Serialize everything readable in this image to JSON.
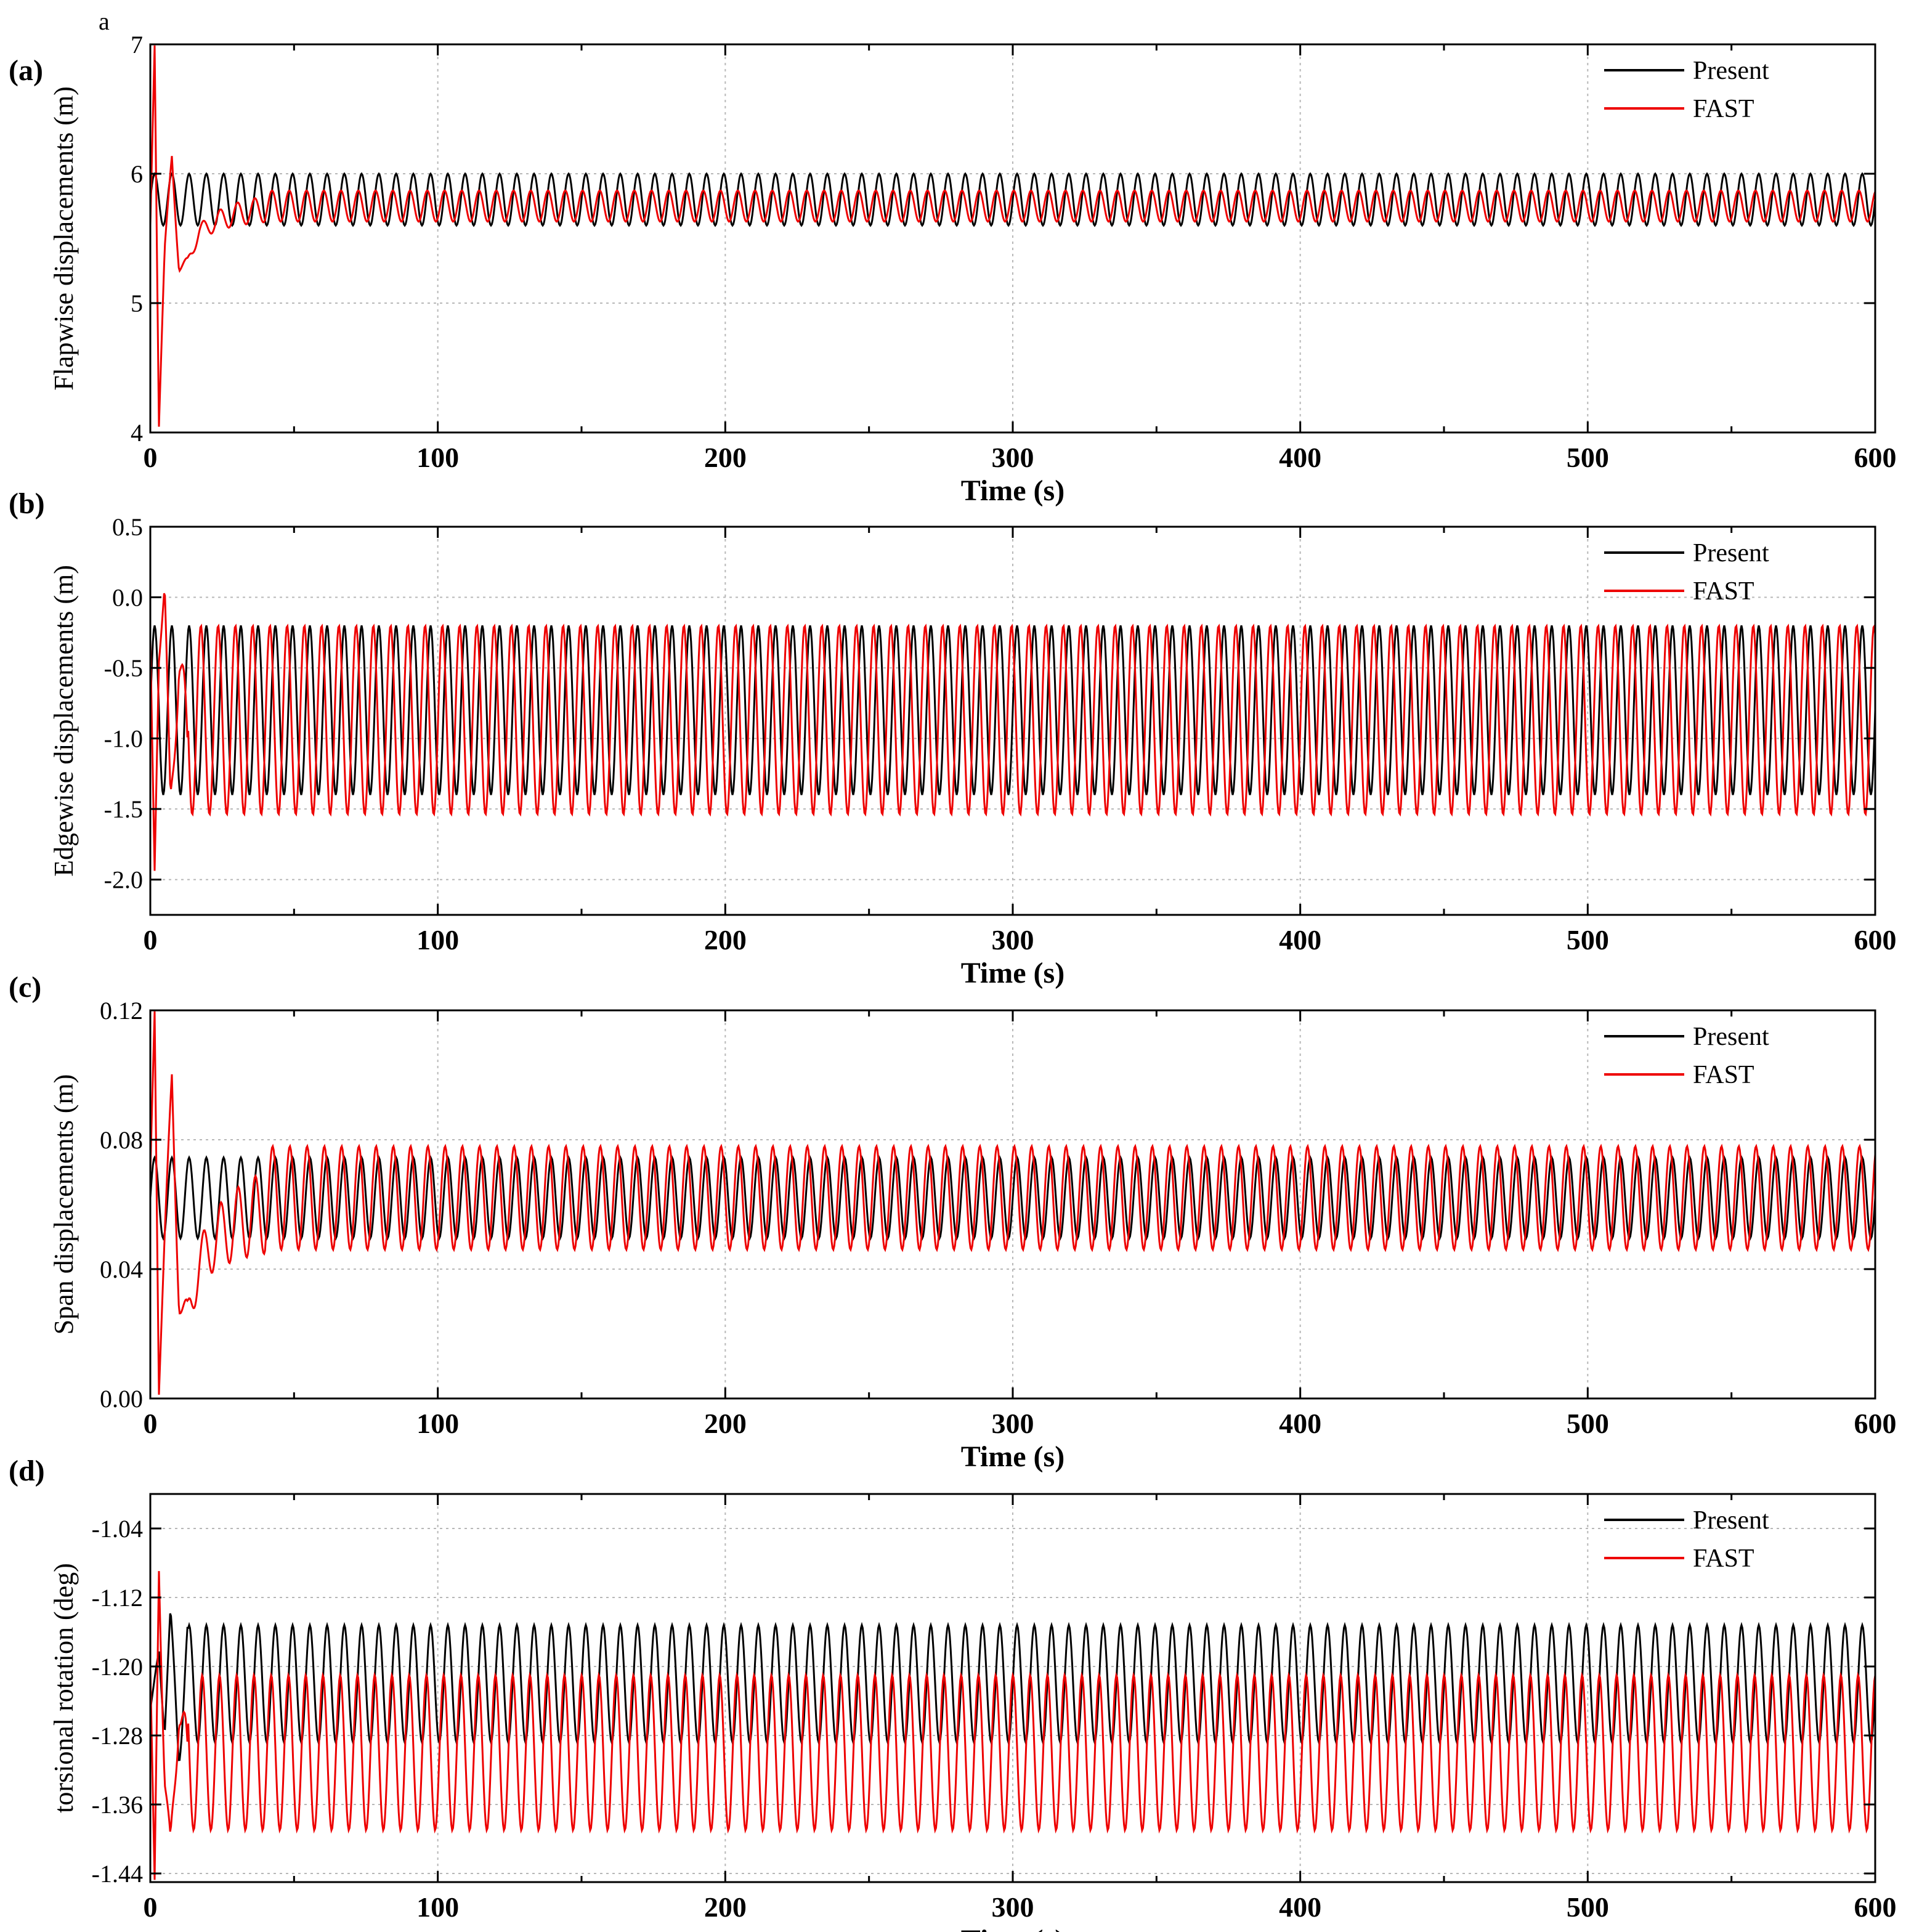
{
  "figure": {
    "corner_mark": "a"
  },
  "chart_data": [
    {
      "type": "line",
      "panel_label": "(a)",
      "xlabel": "Time (s)",
      "ylabel": "Flapwise displacements (m)",
      "xlim": [
        0,
        600
      ],
      "ylim": [
        4,
        7
      ],
      "xticks": [
        0,
        100,
        200,
        300,
        400,
        500,
        600
      ],
      "xtick_labels": [
        "0",
        "100",
        "200",
        "300",
        "400",
        "500",
        "600"
      ],
      "yticks": [
        4,
        5,
        6,
        7
      ],
      "ytick_labels": [
        "4",
        "5",
        "6",
        "7"
      ],
      "grid": true,
      "legend_position": "top-right",
      "period_s": 6.0,
      "series": [
        {
          "name": "Present",
          "color": "#000000",
          "kind": "present",
          "mean": 5.8,
          "amp": 0.2,
          "phase": 0
        },
        {
          "name": "FAST",
          "color": "#ee0000",
          "kind": "fast",
          "mean": 5.75,
          "amp": 0.12,
          "phase": 1.2,
          "tau": 22,
          "transient": [
            [
              0,
              5.6
            ],
            [
              1.5,
              7
            ],
            [
              3,
              4
            ],
            [
              5,
              5.4
            ],
            [
              7.5,
              6.2
            ],
            [
              10,
              5.1
            ],
            [
              13,
              5.0
            ],
            [
              17,
              5.3
            ],
            [
              22,
              5.4
            ],
            [
              30,
              5.5
            ],
            [
              40,
              5.6
            ]
          ]
        }
      ]
    },
    {
      "type": "line",
      "panel_label": "(b)",
      "xlabel": "Time (s)",
      "ylabel": "Edgewise displacements (m)",
      "xlim": [
        0,
        600
      ],
      "ylim": [
        -2.25,
        0.5
      ],
      "xticks": [
        0,
        100,
        200,
        300,
        400,
        500,
        600
      ],
      "xtick_labels": [
        "0",
        "100",
        "200",
        "300",
        "400",
        "500",
        "600"
      ],
      "yticks": [
        0.5,
        0.0,
        -0.5,
        -1.0,
        -1.5,
        -2.0
      ],
      "ytick_labels": [
        "0.5",
        "0.0",
        "-0.5",
        "-1.0",
        "-1.5",
        "-2.0"
      ],
      "grid": true,
      "legend_position": "top-right",
      "period_s": 6.0,
      "series": [
        {
          "name": "Present",
          "color": "#000000",
          "kind": "present",
          "mean": -0.8,
          "amp": 0.6,
          "phase": 0
        },
        {
          "name": "FAST",
          "color": "#ee0000",
          "kind": "fast",
          "mean": -0.87,
          "amp": 0.67,
          "phase": 2.0,
          "tau": 10,
          "transient": [
            [
              0,
              -0.3
            ],
            [
              1.5,
              -1.95
            ],
            [
              3,
              -0.4
            ],
            [
              5,
              0.15
            ],
            [
              7,
              -1.6
            ],
            [
              10,
              -0.2
            ],
            [
              13,
              -1.55
            ]
          ]
        }
      ]
    },
    {
      "type": "line",
      "panel_label": "(c)",
      "xlabel": "Time (s)",
      "ylabel": "Span displacements (m)",
      "xlim": [
        0,
        600
      ],
      "ylim": [
        0,
        0.12
      ],
      "xticks": [
        0,
        100,
        200,
        300,
        400,
        500,
        600
      ],
      "xtick_labels": [
        "0",
        "100",
        "200",
        "300",
        "400",
        "500",
        "600"
      ],
      "yticks": [
        0.0,
        0.04,
        0.08,
        0.12
      ],
      "ytick_labels": [
        "0.00",
        "0.04",
        "0.08",
        "0.12"
      ],
      "grid": true,
      "legend_position": "top-right",
      "period_s": 6.0,
      "series": [
        {
          "name": "Present",
          "color": "#000000",
          "kind": "present",
          "mean": 0.062,
          "amp": 0.0125,
          "phase": 0
        },
        {
          "name": "FAST",
          "color": "#ee0000",
          "kind": "fast",
          "mean": 0.062,
          "amp": 0.016,
          "phase": 1.0,
          "tau": 25,
          "transient": [
            [
              0,
              0.07
            ],
            [
              1.5,
              0.12
            ],
            [
              3,
              0.0
            ],
            [
              5,
              0.05
            ],
            [
              7.5,
              0.105
            ],
            [
              10,
              0.02
            ],
            [
              13,
              0.002
            ],
            [
              17,
              0.02
            ],
            [
              22,
              0.03
            ],
            [
              30,
              0.035
            ],
            [
              40,
              0.04
            ]
          ]
        }
      ]
    },
    {
      "type": "line",
      "panel_label": "(d)",
      "xlabel": "Time (s)",
      "ylabel": "torsional rotation (deg)",
      "xlim": [
        0,
        600
      ],
      "ylim": [
        -1.45,
        -1.0
      ],
      "xticks": [
        0,
        100,
        200,
        300,
        400,
        500,
        600
      ],
      "xtick_labels": [
        "0",
        "100",
        "200",
        "300",
        "400",
        "500",
        "600"
      ],
      "yticks": [
        -1.04,
        -1.12,
        -1.2,
        -1.28,
        -1.36,
        -1.44
      ],
      "ytick_labels": [
        "-1.04",
        "-1.12",
        "-1.20",
        "-1.28",
        "-1.36",
        "-1.44"
      ],
      "grid": true,
      "legend_position": "top-right",
      "period_s": 6.0,
      "series": [
        {
          "name": "Present",
          "color": "#000000",
          "kind": "present",
          "mean": -1.22,
          "amp": 0.068,
          "phase": 0,
          "tau": 8,
          "transient": [
            [
              0,
              -1.25
            ],
            [
              3,
              -1.18
            ],
            [
              5,
              -1.28
            ],
            [
              7,
              -1.12
            ],
            [
              10,
              -1.35
            ],
            [
              13,
              -1.12
            ]
          ]
        },
        {
          "name": "FAST",
          "color": "#ee0000",
          "kind": "fast",
          "mean": -1.3,
          "amp": 0.09,
          "phase": 1.5,
          "tau": 9,
          "transient": [
            [
              0,
              -1.2
            ],
            [
              1.5,
              -1.45
            ],
            [
              3,
              -1.07
            ],
            [
              5,
              -1.35
            ],
            [
              7,
              -1.45
            ],
            [
              10,
              -1.19
            ],
            [
              13,
              -1.4
            ]
          ]
        }
      ]
    }
  ]
}
